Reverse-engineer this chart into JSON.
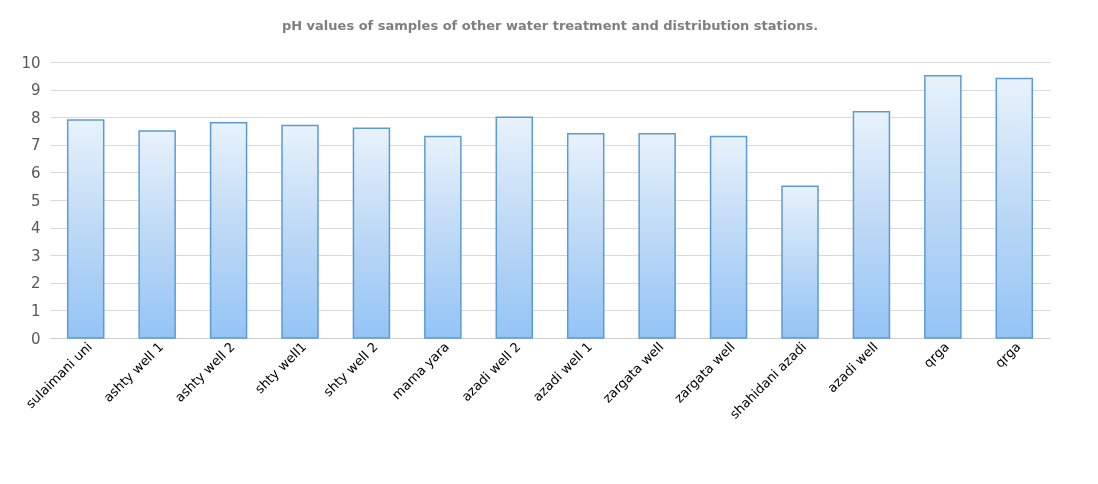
{
  "chart_data": {
    "type": "bar",
    "title": "pH values of samples of other water treatment and distribution stations.",
    "categories": [
      "sulaimani uni",
      "ashty well 1",
      "ashty well 2",
      "shty well1",
      "shty well 2",
      "mama yara",
      "azadi well 2",
      "azadi well 1",
      "zargata well",
      "zargata well",
      "shahidani azadi",
      "azadi well",
      "qrga",
      "qrga"
    ],
    "series": [
      {
        "color": "#5b9bd5",
        "values": [
          7.9,
          7.5,
          7.8,
          7.7,
          7.6,
          7.3,
          8.0,
          7.4,
          7.4,
          7.3,
          5.5,
          8.2,
          9.5,
          9.4
        ]
      }
    ],
    "ylim": [
      0,
      10
    ],
    "yticks": [
      0,
      1,
      2,
      3,
      4,
      5,
      6,
      7,
      8,
      9,
      10
    ],
    "grid": "y"
  }
}
